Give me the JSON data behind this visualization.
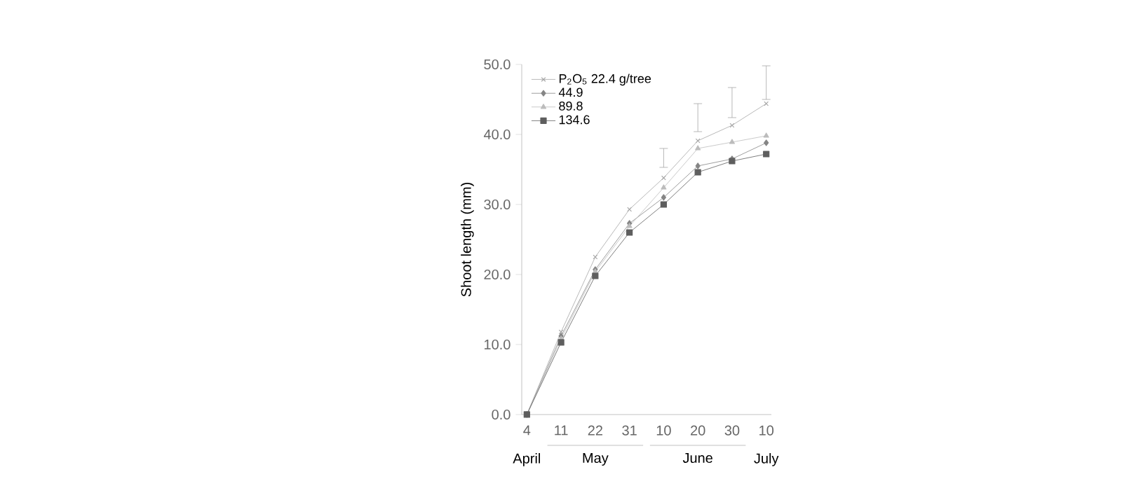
{
  "chart_data": {
    "type": "line",
    "ylabel": "Shoot length (mm)",
    "categories": [
      "4",
      "11",
      "22",
      "31",
      "10",
      "20",
      "30",
      "10"
    ],
    "ylim": [
      0,
      50
    ],
    "yticks": [
      {
        "value": 0,
        "label": "0.0"
      },
      {
        "value": 10,
        "label": "10.0"
      },
      {
        "value": 20,
        "label": "20.0"
      },
      {
        "value": 30,
        "label": "30.0"
      },
      {
        "value": 40,
        "label": "40.0"
      },
      {
        "value": 50,
        "label": "50.0"
      }
    ],
    "grid": false,
    "legend": "top left",
    "series": [
      {
        "name": "P$_{2}$O$_{5}$ 22.4 g/tree",
        "color": "#a6a6a6",
        "marker": "cross",
        "values": [
          0,
          11.8,
          22.5,
          29.3,
          33.8,
          39.1,
          41.3,
          44.4
        ],
        "errors": [
          null,
          null,
          null,
          null,
          [
            35.3,
            38.0
          ],
          [
            40.4,
            44.4
          ],
          [
            42.4,
            46.7
          ],
          [
            45.0,
            49.8
          ]
        ]
      },
      {
        "name": "44.9",
        "color": "#858585",
        "marker": "diamond",
        "values": [
          0,
          11.2,
          20.7,
          27.3,
          31.0,
          35.5,
          36.5,
          38.8
        ]
      },
      {
        "name": "89.8",
        "color": "#bcbcbc",
        "marker": "triangle",
        "values": [
          0,
          10.8,
          20.4,
          26.9,
          32.4,
          38.0,
          38.9,
          39.8
        ]
      },
      {
        "name": "134.6",
        "color": "#5e5e5e",
        "marker": "square",
        "values": [
          0,
          10.3,
          19.8,
          26.0,
          30.0,
          34.6,
          36.2,
          37.2
        ]
      }
    ],
    "annotations": [
      "April",
      "May",
      "June",
      "July"
    ]
  }
}
